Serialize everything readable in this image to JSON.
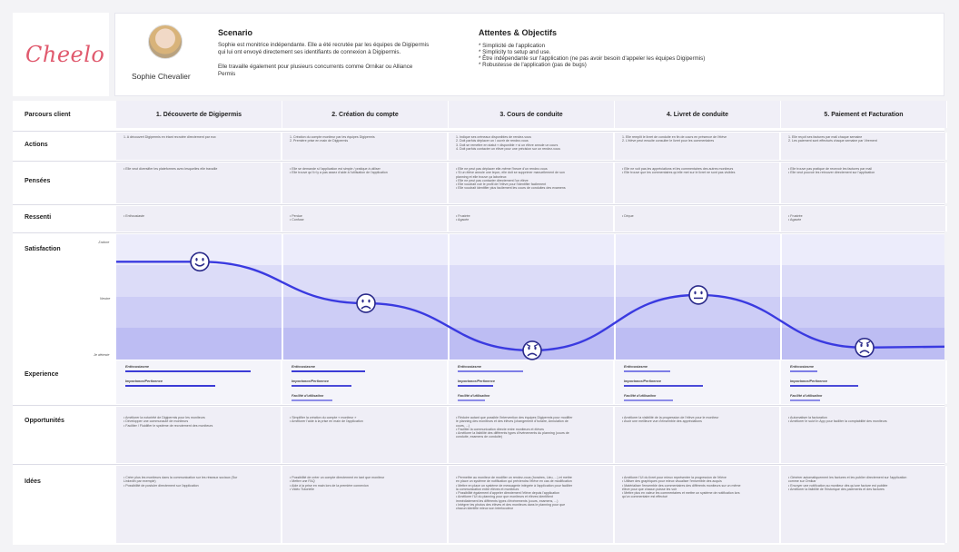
{
  "brand": {
    "logo": "Cheelo",
    "accent": "#e05a6e",
    "curve_color": "#3a3ae0"
  },
  "persona": {
    "name": "Sophie Chevalier",
    "scenario_title": "Scenario",
    "scenario_lines": [
      "Sophie est monitrice indépendante. Elle a été recrutée par les équipes de Digipermis",
      "qui lui ont envoyé directement ses identifiants de connexion à Digipermis.",
      "Elle travaille également pour plusieurs concurrents comme Ornikar ou Alliance",
      "Permis"
    ]
  },
  "goals": {
    "title": "Attentes & Objectifs",
    "items": [
      "* Simplicité de l'application",
      "* Simplicity to setup and use.",
      "* Être indépendante sur l'application (ne pas avoir besoin d'appeler les équipes Digipermis)",
      "* Robustesse de l'application (pas de bugs)"
    ]
  },
  "rows": {
    "parcours": "Parcours client",
    "actions": "Actions",
    "pensees": "Pensées",
    "ressenti": "Ressenti",
    "satisfaction": "Satisfaction",
    "experience": "Experience",
    "opportunites": "Opportunités",
    "idees": "Idées"
  },
  "satisfaction_scale": {
    "top": "J'adore",
    "mid": "Neutre",
    "bottom": "Je déteste"
  },
  "experience_labels": {
    "enthousiasme": "Enthousiasme",
    "importance": "Importance/Pertinence",
    "facilite": "Facilité d'utilisation"
  },
  "stages": [
    {
      "title": "1. Découverte de Digipermis",
      "actions": "1.   A découvert Digipermis en étant recrutée directement par eux",
      "pensees": "• Elle veut diversifier les plateformes avec lesquelles elle travaille",
      "ressenti": "• Enthousiaste",
      "satisfaction": 0.7,
      "mood": "happy",
      "experience": [
        0.92,
        0.66
      ],
      "opportunites": "• Améliorer la notoriété de Digipermis pour les moniteurs\n• Développer une communauté de moniteurs\n• Faciliter / Fluidifier le système de recrutement des moniteurs",
      "idees": "• Créer plus les moniteurs dans la communication sur les réseaux sociaux (Sur\n  LinkedIn par exemple)\n• Possibilité de postuler directement sur l'application"
    },
    {
      "title": "2. Création du compte",
      "actions": "1.   Création du compte moniteur par les équipes Digipermis\n2.   Première prise en main de Digipermis",
      "pensees": "• Elle se demande si l'application est simple / pratique à utiliser\n• Elle trouve qu'il n'y a pas assez d'aide à l'utilisation de l'application",
      "ressenti": "• Perdue\n• Confuse",
      "satisfaction": -0.05,
      "mood": "sad",
      "experience": [
        0.54,
        0.44,
        0.3
      ],
      "opportunites": "• Simplifier la création du compte « moniteur »\n• Améliorer l'aide à la prise en main de l'application",
      "idees": "• Possibilité de créer un compte directement en tant que moniteur\n• Mettre une FAQ\n• Aide à la prise en main lors de la première connexion\n• Vidéo Tutorielle"
    },
    {
      "title": "3. Cours de conduite",
      "actions": "1.   Indique ses créneaux disponibles de rendez-vous\n2.   Doit parfois déplacer un / ouvrir de rendez-vous\n3.   Doit se remettre en statut « disponible » si un élève annule un cours\n4.   Doit parfois contacter un élève pour une précision sur un rendez-vous",
      "pensees": "• Elle ne peut pas déplacer elle-même l'heure d'un rendez-vous\n• Si un élève annule une leçon, elle doit se supprimer manuellement de son\n  planning et elle trouve ça laborieux\n• Elle ne peut pas contacter directement l'un élève\n• Elle voudrait voir le profil de l'élève pour l'identifier facilement\n• Elle voudrait identifier plus facilement les cours de conduites des examens",
      "ressenti": "• Frustrée\n• Agacée",
      "satisfaction": -0.9,
      "mood": "angry",
      "experience": [
        0.48,
        0.26,
        0.2
      ],
      "opportunites": "• Réduire autant que possible l'intervention des équipes Digipermis pour modifier\n  le planning des moniteurs et des élèves (changement d'horaire, Annulation de\n  cours, ...)\n• Faciliter la communication directe entre moniteurs et élèves\n• Améliorer la lisibilité des différents types d'événements du planning (cours de\n  conduite, examens de conduite)",
      "idees": "• Permettre au moniteur de modifier un rendez-vous (horaires, Lieu, ...) et mettre\n  en place un système de notification qui préviendra l'élève en cas de modification\n• Mettre en place un système de messagerie intégrée à l'application pour faciliter\n  la communication entre élèves et moniteurs\n• Possibilité également d'appeler directement l'élève depuis l'application\n• Améliorer l'UI du planning pour que moniteurs et élèves identifient\n  immédiatement les différents types d'événements (cours, examens, ...)\n• Intégrer les photos des élèves et des moniteurs dans le planning pour que\n  chacun identifie mieux son interlocuteur"
    },
    {
      "title": "4. Livret de conduite",
      "actions": "1.   Elle remplit le livret de conduite en fin de cours en présence de l'élève\n2.   L'élève peut ensuite consulter le livret pour les commentaires",
      "pensees": "• Elle ne voit pas les appréciations et les commentaires des autres moniteurs\n• Elle trouve que les commentaires qu'elle met sur le livret ne sont pas visibles",
      "ressenti": "• Déçue",
      "satisfaction": 0.1,
      "mood": "neutral",
      "experience": [
        0.34,
        0.58,
        0.36
      ],
      "opportunites": "• Améliorer la visibilité de la progression de l'élève pour le moniteur\n• Avoir une meilleure vue d'ensemble des appréciations",
      "idees": "• Améliorer l'UI du livret pour mieux représenter la progression de l'élève\n• Utiliser des graphiques pour mieux visualiser l'ensemble des acquis\n• Matérialiser l'ensemble des commentaires des différents moniteurs sur un même\n  élève pour que chacun puisse les voir\n• Mettre plus en valeur les commentaires et mettre un système de notification lors\n  qu'un commentaire est effectué"
    },
    {
      "title": "5. Paiement et Facturation",
      "actions": "1.   Elle reçoit ses factures par mail chaque semaine\n2.   Les paiement sont effectués chaque semaine par Virement",
      "pensees": "• Elle trouve pas pratique de recevoir les factures par mail\n• Elle veut pouvoir les retrouver directement sur l'application",
      "ressenti": "• Frustrée\n• Agacée",
      "satisfaction": -0.85,
      "mood": "angry",
      "experience": [
        0.2,
        0.5,
        0.22
      ],
      "opportunites": "• Automatiser la facturation\n• Améliorer le suivi In App pour faciliter la comptabilité des moniteurs",
      "idees": "• Générer automatiquement les factures et les publier directement sur l'application\n  comme sur Ornikar\n• Envoyer une notification au moniteur dès qu'une facture est publiée\n• Améliorer la lisibilité de l'historique des paiements et des factures"
    }
  ]
}
